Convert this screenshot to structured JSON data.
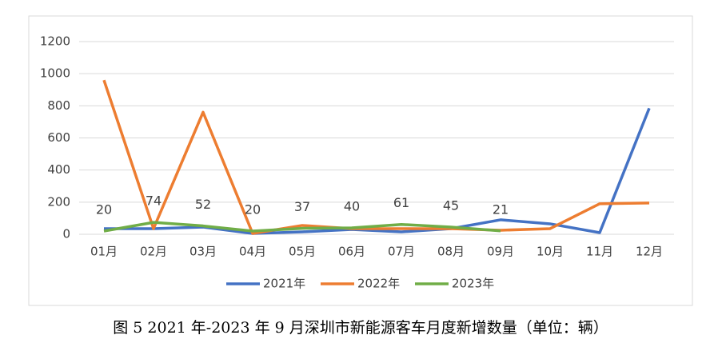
{
  "chart_data": {
    "type": "line",
    "caption": "图 5 2021 年-2023 年 9 月深圳市新能源客车月度新增数量（单位：辆）",
    "categories": [
      "01月",
      "02月",
      "03月",
      "04月",
      "05月",
      "06月",
      "07月",
      "08月",
      "09月",
      "10月",
      "11月",
      "12月"
    ],
    "series": [
      {
        "name": "2021年",
        "color": "#4472c4",
        "values": [
          35,
          35,
          45,
          5,
          15,
          30,
          15,
          35,
          90,
          65,
          10,
          785
        ]
      },
      {
        "name": "2022年",
        "color": "#ed7d31",
        "values": [
          960,
          35,
          760,
          5,
          55,
          35,
          35,
          35,
          25,
          35,
          190,
          195
        ]
      },
      {
        "name": "2023年",
        "color": "#70ad47",
        "values": [
          20,
          74,
          52,
          20,
          37,
          40,
          61,
          45,
          21,
          null,
          null,
          null
        ],
        "show_labels": true
      }
    ],
    "ylim": [
      0,
      1200
    ],
    "yticks": [
      0,
      200,
      400,
      600,
      800,
      1000,
      1200
    ],
    "grid": true,
    "legend": "bottom"
  }
}
